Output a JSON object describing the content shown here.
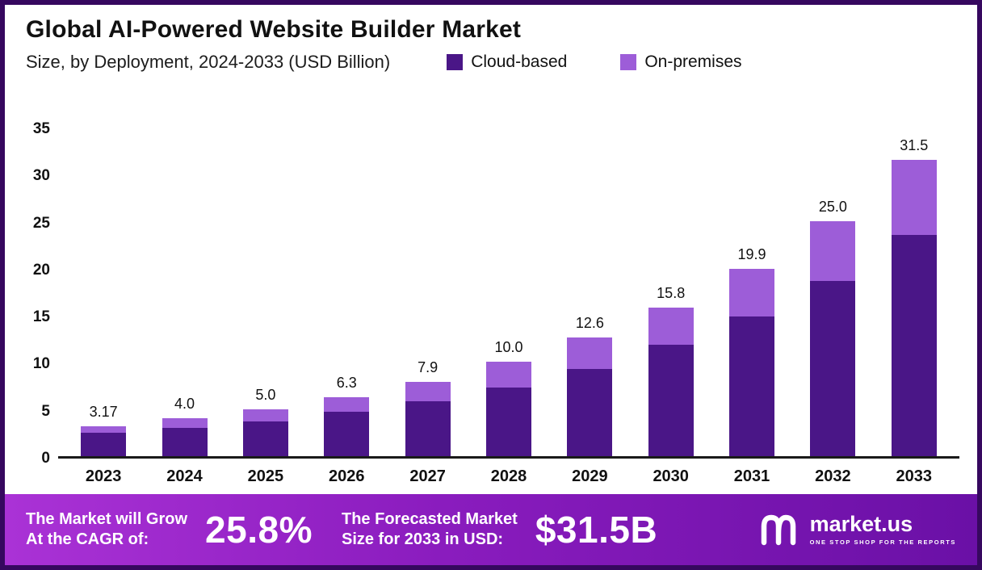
{
  "header": {
    "title": "Global AI-Powered Website Builder Market",
    "subtitle": "Size, by Deployment, 2024-2033 (USD Billion)"
  },
  "legend": [
    {
      "label": "Cloud-based",
      "color": "#4a1687"
    },
    {
      "label": "On-premises",
      "color": "#9d5dd8"
    }
  ],
  "chart_data": {
    "type": "bar",
    "stacked": true,
    "title": "Global AI-Powered Website Builder Market Size, by Deployment, 2024-2033 (USD Billion)",
    "categories": [
      "2023",
      "2024",
      "2025",
      "2026",
      "2027",
      "2028",
      "2029",
      "2030",
      "2031",
      "2032",
      "2033"
    ],
    "series": [
      {
        "name": "Cloud-based",
        "color": "#4a1687",
        "values": [
          2.5,
          3.0,
          3.7,
          4.7,
          5.8,
          7.3,
          9.3,
          11.8,
          14.8,
          18.6,
          23.5
        ]
      },
      {
        "name": "On-premises",
        "color": "#9d5dd8",
        "values": [
          0.67,
          1.0,
          1.3,
          1.6,
          2.1,
          2.7,
          3.3,
          4.0,
          5.1,
          6.4,
          8.0
        ]
      }
    ],
    "totals_labels": [
      "3.17",
      "4.0",
      "5.0",
      "6.3",
      "7.9",
      "10.0",
      "12.6",
      "15.8",
      "19.9",
      "25.0",
      "31.5"
    ],
    "xlabel": "",
    "ylabel": "",
    "ylim": [
      0,
      35
    ],
    "yticks": [
      0,
      5,
      10,
      15,
      20,
      25,
      30,
      35
    ],
    "grid": false,
    "legend_position": "top"
  },
  "footer": {
    "cagr_label_line1": "The Market will Grow",
    "cagr_label_line2": "At the CAGR of:",
    "cagr_value": "25.8%",
    "forecast_label_line1": "The Forecasted Market",
    "forecast_label_line2": "Size for 2033 in USD:",
    "forecast_value": "$31.5B",
    "brand": "market.us",
    "brand_tagline": "ONE STOP SHOP FOR THE REPORTS"
  },
  "colors": {
    "border": "#36085f",
    "cloud": "#4a1687",
    "onprem": "#9d5dd8",
    "footer_gradient_start": "#aa32d6",
    "footer_gradient_end": "#6a10a6",
    "text": "#111111"
  }
}
